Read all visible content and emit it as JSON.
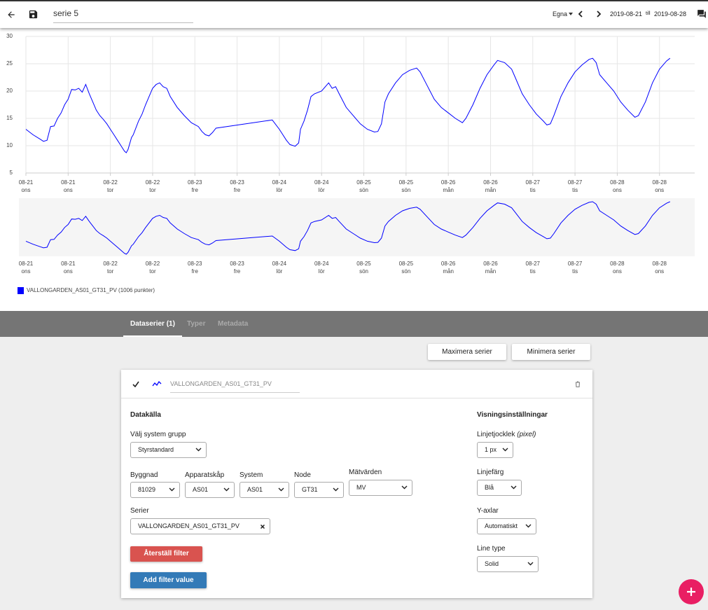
{
  "toolbar": {
    "title": "serie 5",
    "range_mode": "Egna",
    "date_from": "2019-08-21",
    "till": "till",
    "date_to": "2019-08-28"
  },
  "chart_data": {
    "type": "line",
    "x": [
      0,
      2,
      4,
      5,
      6,
      7,
      8,
      9,
      10,
      11,
      12,
      13,
      14,
      15,
      16,
      17,
      18,
      19,
      20,
      21,
      22,
      23,
      24,
      25,
      26,
      27,
      28,
      28.5,
      29,
      30,
      30.5,
      32,
      33,
      34,
      35,
      36,
      37,
      38,
      39,
      40,
      41,
      43,
      45,
      47,
      49,
      50,
      51,
      52,
      53,
      54,
      70,
      72,
      74,
      75,
      76.5,
      77.5,
      78,
      79,
      80,
      81,
      82,
      84,
      86,
      87,
      88,
      89,
      91,
      93,
      95,
      97,
      99,
      100,
      101,
      102,
      103,
      105,
      107,
      109,
      111,
      112,
      114,
      116,
      118,
      120,
      122,
      124,
      125,
      127,
      129,
      131,
      133,
      134,
      136,
      138,
      139,
      141,
      143,
      145,
      147,
      148,
      149,
      150,
      152,
      154,
      156,
      158,
      160,
      161,
      162,
      163,
      165,
      167,
      169,
      171,
      173,
      174,
      176,
      178,
      180,
      182,
      183
    ],
    "series": [
      {
        "name": "VALLONGARDEN_AS01_GT31_PV (1006 punkter)",
        "color": "#0000ff",
        "values": [
          13,
          12,
          11.2,
          10.8,
          11,
          13.5,
          13.6,
          15,
          16,
          17.5,
          18.5,
          20.3,
          20.2,
          20.5,
          19.8,
          21.2,
          19.5,
          18,
          16.5,
          15.5,
          14.8,
          14,
          13,
          12,
          11,
          10,
          9,
          8.7,
          9.3,
          11.5,
          12,
          14.5,
          15.8,
          17.5,
          19,
          20.5,
          21.2,
          21.5,
          20.8,
          20.5,
          19,
          17,
          15.5,
          14.2,
          13.5,
          12.6,
          12,
          11.8,
          12.4,
          13.2,
          14.7,
          13,
          11,
          10.2,
          9.9,
          10.5,
          13,
          14.5,
          16.5,
          19,
          19.5,
          20,
          21.5,
          20.5,
          20.8,
          19.5,
          17,
          15.5,
          14,
          13,
          12.5,
          12.6,
          14,
          18,
          19.5,
          21.5,
          23,
          23.8,
          24.2,
          23.5,
          21,
          18.5,
          17,
          16,
          15,
          14.2,
          15,
          17.5,
          20.5,
          23,
          24.8,
          25.6,
          25.2,
          24,
          22.5,
          19.5,
          17.5,
          15.8,
          14.5,
          13.8,
          14,
          15.5,
          19,
          21.5,
          23.5,
          24.8,
          25.8,
          26,
          25.2,
          23,
          21.5,
          20,
          18,
          16.5,
          15.2,
          15.5,
          18,
          21.5,
          24,
          25.5,
          26
        ]
      }
    ],
    "xlim": [
      0,
      190
    ],
    "xticks": [
      {
        "value": 0,
        "label": "08-21",
        "day": "ons"
      },
      {
        "value": 12,
        "label": "08-21",
        "day": "ons"
      },
      {
        "value": 24,
        "label": "08-22",
        "day": "tor"
      },
      {
        "value": 36,
        "label": "08-22",
        "day": "tor"
      },
      {
        "value": 48,
        "label": "08-23",
        "day": "fre"
      },
      {
        "value": 60,
        "label": "08-23",
        "day": "fre"
      },
      {
        "value": 72,
        "label": "08-24",
        "day": "lör"
      },
      {
        "value": 84,
        "label": "08-24",
        "day": "lör"
      },
      {
        "value": 96,
        "label": "08-25",
        "day": "sön"
      },
      {
        "value": 108,
        "label": "08-25",
        "day": "sön"
      },
      {
        "value": 120,
        "label": "08-26",
        "day": "mån"
      },
      {
        "value": 132,
        "label": "08-26",
        "day": "mån"
      },
      {
        "value": 144,
        "label": "08-27",
        "day": "tis"
      },
      {
        "value": 156,
        "label": "08-27",
        "day": "tis"
      },
      {
        "value": 168,
        "label": "08-28",
        "day": "ons"
      },
      {
        "value": 180,
        "label": "08-28",
        "day": "ons"
      }
    ],
    "ylim": [
      5,
      30
    ],
    "yticks": [
      5,
      10,
      15,
      20,
      25,
      30
    ],
    "grid": true
  },
  "tabs": [
    "Dataserier (1)",
    "Typer",
    "Metadata"
  ],
  "actions": [
    "Maximera serier",
    "Minimera serier"
  ],
  "card": {
    "series_name": "VALLONGARDEN_AS01_GT31_PV",
    "source": {
      "heading": "Datakälla",
      "group_label": "Välj system grupp",
      "group_value": "Styrstandard",
      "filters": [
        {
          "label": "Byggnad",
          "value": "81029"
        },
        {
          "label": "Apparatskåp",
          "value": "AS01"
        },
        {
          "label": "System",
          "value": "AS01"
        },
        {
          "label": "Node",
          "value": "GT31"
        },
        {
          "label": "Mätvärden",
          "value": "MV"
        }
      ],
      "series_label": "Serier",
      "series_chip": "VALLONGARDEN_AS01_GT31_PV",
      "reset": "Återställ filter",
      "add": "Add filter value"
    },
    "display": {
      "heading": "Visningsinställningar",
      "settings": [
        {
          "label": "Linjetjocklek",
          "hint": "(pixel)",
          "value": "1 px"
        },
        {
          "label": "Linjefärg",
          "value": "Blå"
        },
        {
          "label": "Y-axlar",
          "value": "Automatiskt"
        },
        {
          "label": "Line type",
          "value": "Solid"
        }
      ]
    }
  }
}
